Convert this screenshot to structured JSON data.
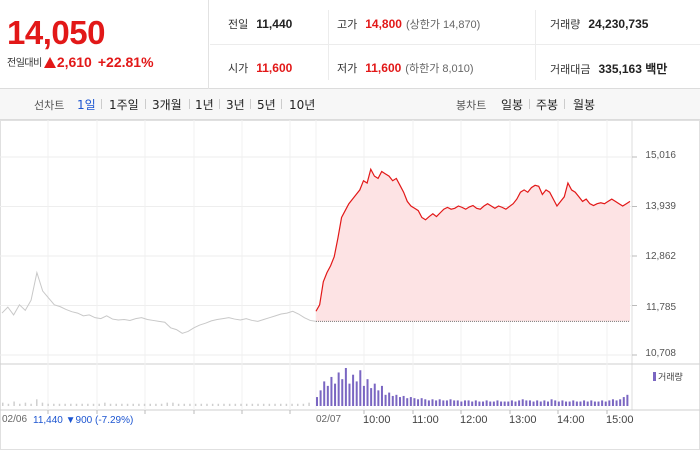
{
  "summary": {
    "current_price": "14,050",
    "change_label": "전일대비",
    "change_amount": "2,610",
    "change_percent": "+22.81%",
    "prev_close": {
      "label": "전일",
      "value": "11,440"
    },
    "high": {
      "label": "고가",
      "value": "14,800",
      "limit_label": "(상한가 14,870)"
    },
    "volume": {
      "label": "거래량",
      "value": "24,230,735"
    },
    "open": {
      "label": "시가",
      "value": "11,600"
    },
    "low": {
      "label": "저가",
      "value": "11,600",
      "limit_label": "(하한가 8,010)"
    },
    "trade_value": {
      "label": "거래대금",
      "value": "335,163 백만"
    }
  },
  "line_chart_tabs": {
    "label": "선차트",
    "items": [
      "1일",
      "1주일",
      "3개월",
      "1년",
      "3년",
      "5년",
      "10년"
    ],
    "active_index": 0
  },
  "candle_chart_tabs": {
    "label": "봉차트",
    "items": [
      "일봉",
      "주봉",
      "월봉"
    ]
  },
  "colors": {
    "up": "#e21818",
    "active_tab": "#1c55d1",
    "prev_day_line": "#c8c8c8",
    "fill": "#fde3e4",
    "volume_bar": "#7a66c2"
  },
  "chart_data": {
    "type": "line",
    "ylim": [
      10708,
      15016
    ],
    "y_ticks": [
      "15,016",
      "13,939",
      "12,862",
      "11,785",
      "10,708"
    ],
    "y_tick_values": [
      15016,
      13939,
      12862,
      11785,
      10708
    ],
    "x_ticks": [
      "02/06",
      "02/07",
      "10:00",
      "11:00",
      "12:00",
      "13:00",
      "14:00",
      "15:00"
    ],
    "prev_day_close_text": "11,440 ▼900 (-7.29%)",
    "baseline": 11440,
    "prev_day_series": [
      11620,
      11750,
      11580,
      11800,
      11680,
      11900,
      12500,
      12100,
      11950,
      11800,
      11760,
      11700,
      11650,
      11620,
      11560,
      11580,
      11520,
      11500,
      11560,
      11490,
      11470,
      11480,
      11460,
      11500,
      11520,
      11480,
      11460,
      11440,
      11420,
      11300,
      11260,
      11180,
      11220,
      11300,
      11360,
      11400,
      11450,
      11480,
      11500,
      11520,
      11490,
      11470,
      11500,
      11460,
      11440,
      11480,
      11520,
      11560,
      11600,
      11620,
      11660,
      11600,
      11520,
      11460,
      11440
    ],
    "today_series": [
      11660,
      11800,
      12300,
      12500,
      12650,
      12850,
      13250,
      13700,
      13850,
      14000,
      14100,
      14200,
      14300,
      14500,
      14450,
      14750,
      14600,
      14550,
      14700,
      14650,
      14600,
      14500,
      14550,
      14400,
      14250,
      14050,
      13950,
      13900,
      13850,
      13700,
      13650,
      13720,
      13780,
      13720,
      13800,
      13880,
      13920,
      13880,
      13900,
      13950,
      13920,
      13880,
      13930,
      13960,
      13900,
      13880,
      13950,
      14000,
      13950,
      13900,
      13950,
      13920,
      13880,
      13940,
      14000,
      14100,
      14250,
      14300,
      14250,
      14350,
      14400,
      14380,
      14200,
      14300,
      14250,
      14100,
      13950,
      14050,
      14150,
      14450,
      14300,
      14250,
      14150,
      14050,
      14100,
      14000,
      13960,
      14000,
      14020,
      14000,
      14050,
      14100,
      14050,
      14000,
      13950,
      14000,
      14050
    ],
    "volume_legend": "거래량",
    "prev_day_volume": [
      3,
      2,
      4,
      2,
      3,
      2,
      6,
      3,
      2,
      2,
      2,
      2,
      2,
      2,
      2,
      2,
      2,
      2,
      3,
      2,
      2,
      2,
      2,
      2,
      2,
      2,
      2,
      2,
      2,
      3,
      3,
      2,
      2,
      2,
      2,
      2,
      2,
      2,
      2,
      2,
      2,
      2,
      2,
      2,
      2,
      2,
      2,
      2,
      2,
      2,
      2,
      2,
      2,
      2,
      3
    ],
    "today_volume": [
      8,
      14,
      22,
      18,
      26,
      20,
      30,
      24,
      34,
      20,
      28,
      22,
      32,
      18,
      24,
      16,
      20,
      14,
      18,
      10,
      12,
      9,
      10,
      8,
      9,
      7,
      8,
      7,
      6,
      7,
      6,
      5,
      6,
      5,
      6,
      5,
      5,
      6,
      5,
      5,
      4,
      5,
      5,
      4,
      5,
      4,
      4,
      5,
      4,
      4,
      5,
      4,
      4,
      4,
      5,
      4,
      5,
      6,
      5,
      5,
      4,
      5,
      4,
      5,
      4,
      6,
      5,
      4,
      5,
      4,
      4,
      5,
      4,
      4,
      5,
      4,
      5,
      4,
      4,
      5,
      4,
      5,
      6,
      5,
      6,
      8,
      10
    ]
  }
}
